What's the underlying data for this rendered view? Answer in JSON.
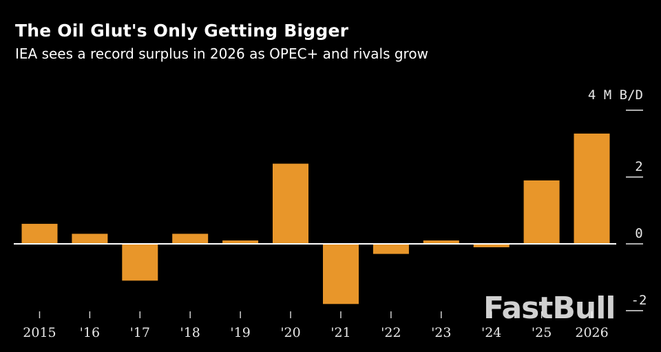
{
  "header": {
    "title": "The Oil Glut's Only Getting Bigger",
    "subtitle": "IEA sees a record surplus in 2026 as OPEC+ and rivals grow"
  },
  "watermark": {
    "text": "FastBull"
  },
  "chart_data": {
    "type": "bar",
    "categories": [
      "2015",
      "'16",
      "'17",
      "'18",
      "'19",
      "'20",
      "'21",
      "'22",
      "'23",
      "'24",
      "'25",
      "2026"
    ],
    "values": [
      0.6,
      0.3,
      -1.1,
      0.3,
      0.1,
      2.4,
      -1.8,
      -0.3,
      0.1,
      -0.1,
      1.9,
      3.3
    ],
    "unit_label": "4 M B/D",
    "yticks": [
      {
        "value": 4,
        "label": ""
      },
      {
        "value": 2,
        "label": "2"
      },
      {
        "value": 0,
        "label": "0"
      },
      {
        "value": -2,
        "label": "-2"
      }
    ],
    "ylim": [
      -2,
      4
    ],
    "bar_color": "#e8962a",
    "zero_line_color": "#ffffff",
    "grid": false,
    "legend": "none"
  }
}
